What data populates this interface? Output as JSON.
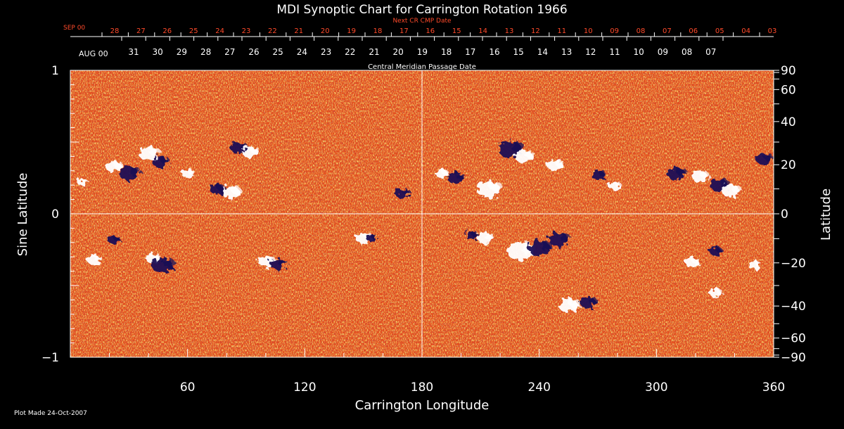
{
  "chart_data": {
    "type": "heatmap",
    "title": "MDI Synoptic Chart for Carrington Rotation 1966",
    "xlabel": "Carrington Longitude",
    "ylabel_left": "Sine Latitude",
    "ylabel_right": "Latitude",
    "xlim": [
      0,
      360
    ],
    "ylim": [
      -1,
      1
    ],
    "x_ticks": [
      60,
      120,
      180,
      240,
      300,
      360
    ],
    "y_left_ticks": [
      {
        "v": 1,
        "label": "1"
      },
      {
        "v": 0,
        "label": "0"
      },
      {
        "v": -1,
        "label": "−1"
      }
    ],
    "y_right_ticks": [
      90,
      60,
      40,
      20,
      0,
      -20,
      -40,
      -60,
      -90
    ],
    "center_lines": {
      "longitude": 180,
      "sine_latitude": 0
    },
    "top_axis_next": {
      "label": "Next CR CMP Date",
      "month_label": "SEP 00",
      "dates": [
        "28",
        "27",
        "26",
        "25",
        "24",
        "23",
        "22",
        "21",
        "20",
        "19",
        "18",
        "17",
        "16",
        "15",
        "14",
        "13",
        "12",
        "11",
        "10",
        "09",
        "08",
        "07",
        "06",
        "05",
        "04",
        "03"
      ]
    },
    "top_axis_cmp": {
      "label": "Central Meridian Passage Date",
      "month_label": "AUG 00",
      "dates": [
        "31",
        "30",
        "29",
        "28",
        "27",
        "26",
        "25",
        "24",
        "23",
        "22",
        "21",
        "20",
        "19",
        "18",
        "17",
        "16",
        "15",
        "14",
        "13",
        "12",
        "11",
        "10",
        "09",
        "08",
        "07"
      ]
    },
    "regions": [
      {
        "lon": 6,
        "sinlat": 0.22,
        "polarity": "positive",
        "r": 5
      },
      {
        "lon": 22,
        "sinlat": 0.33,
        "polarity": "positive",
        "r": 8
      },
      {
        "lon": 30,
        "sinlat": 0.28,
        "polarity": "negative",
        "r": 10
      },
      {
        "lon": 40,
        "sinlat": 0.42,
        "polarity": "positive",
        "r": 10
      },
      {
        "lon": 46,
        "sinlat": 0.36,
        "polarity": "negative",
        "r": 8
      },
      {
        "lon": 60,
        "sinlat": 0.28,
        "polarity": "positive",
        "r": 6
      },
      {
        "lon": 75,
        "sinlat": 0.17,
        "polarity": "negative",
        "r": 7
      },
      {
        "lon": 82,
        "sinlat": 0.15,
        "polarity": "positive",
        "r": 9
      },
      {
        "lon": 86,
        "sinlat": 0.46,
        "polarity": "negative",
        "r": 8
      },
      {
        "lon": 92,
        "sinlat": 0.43,
        "polarity": "positive",
        "r": 8
      },
      {
        "lon": 170,
        "sinlat": 0.14,
        "polarity": "negative",
        "r": 7
      },
      {
        "lon": 12,
        "sinlat": -0.32,
        "polarity": "positive",
        "r": 7
      },
      {
        "lon": 22,
        "sinlat": -0.18,
        "polarity": "negative",
        "r": 6
      },
      {
        "lon": 42,
        "sinlat": -0.31,
        "polarity": "positive",
        "r": 7
      },
      {
        "lon": 47,
        "sinlat": -0.36,
        "polarity": "negative",
        "r": 11
      },
      {
        "lon": 100,
        "sinlat": -0.33,
        "polarity": "positive",
        "r": 8
      },
      {
        "lon": 106,
        "sinlat": -0.35,
        "polarity": "negative",
        "r": 8
      },
      {
        "lon": 150,
        "sinlat": -0.17,
        "polarity": "positive",
        "r": 8
      },
      {
        "lon": 154,
        "sinlat": -0.17,
        "polarity": "negative",
        "r": 5
      },
      {
        "lon": 190,
        "sinlat": 0.28,
        "polarity": "positive",
        "r": 6
      },
      {
        "lon": 197,
        "sinlat": 0.25,
        "polarity": "negative",
        "r": 8
      },
      {
        "lon": 214,
        "sinlat": 0.17,
        "polarity": "positive",
        "r": 12
      },
      {
        "lon": 225,
        "sinlat": 0.45,
        "polarity": "negative",
        "r": 12
      },
      {
        "lon": 232,
        "sinlat": 0.4,
        "polarity": "positive",
        "r": 9
      },
      {
        "lon": 248,
        "sinlat": 0.34,
        "polarity": "positive",
        "r": 8
      },
      {
        "lon": 270,
        "sinlat": 0.27,
        "polarity": "negative",
        "r": 7
      },
      {
        "lon": 278,
        "sinlat": 0.2,
        "polarity": "positive",
        "r": 6
      },
      {
        "lon": 310,
        "sinlat": 0.28,
        "polarity": "negative",
        "r": 9
      },
      {
        "lon": 322,
        "sinlat": 0.26,
        "polarity": "positive",
        "r": 8
      },
      {
        "lon": 332,
        "sinlat": 0.2,
        "polarity": "negative",
        "r": 9
      },
      {
        "lon": 338,
        "sinlat": 0.16,
        "polarity": "positive",
        "r": 9
      },
      {
        "lon": 355,
        "sinlat": 0.38,
        "polarity": "negative",
        "r": 8
      },
      {
        "lon": 205,
        "sinlat": -0.15,
        "polarity": "negative",
        "r": 6
      },
      {
        "lon": 212,
        "sinlat": -0.17,
        "polarity": "positive",
        "r": 8
      },
      {
        "lon": 230,
        "sinlat": -0.26,
        "polarity": "positive",
        "r": 13
      },
      {
        "lon": 240,
        "sinlat": -0.24,
        "polarity": "negative",
        "r": 11
      },
      {
        "lon": 250,
        "sinlat": -0.18,
        "polarity": "negative",
        "r": 10
      },
      {
        "lon": 255,
        "sinlat": -0.64,
        "polarity": "positive",
        "r": 10
      },
      {
        "lon": 265,
        "sinlat": -0.62,
        "polarity": "negative",
        "r": 8
      },
      {
        "lon": 318,
        "sinlat": -0.34,
        "polarity": "positive",
        "r": 7
      },
      {
        "lon": 330,
        "sinlat": -0.26,
        "polarity": "negative",
        "r": 6
      },
      {
        "lon": 350,
        "sinlat": -0.36,
        "polarity": "positive",
        "r": 6
      },
      {
        "lon": 330,
        "sinlat": -0.55,
        "polarity": "positive",
        "r": 6
      }
    ],
    "colors": {
      "background": "#000000",
      "field_base": "#f06a1e",
      "positive": "#ffffff",
      "negative": "#1a0e55",
      "axis": "#ffffff",
      "top_date_red": "#ff4a2a"
    }
  },
  "footer": {
    "plot_made": "Plot Made 24-Oct-2007"
  }
}
